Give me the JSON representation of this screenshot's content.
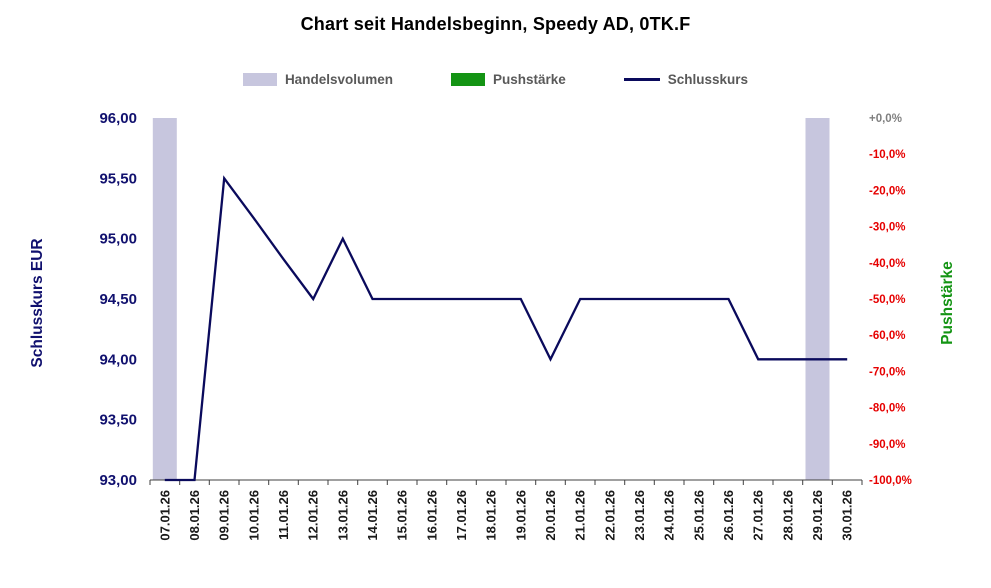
{
  "header": {
    "title": "Chart seit Handelsbeginn, Speedy AD, 0TK.F"
  },
  "legend": {
    "text_color": "#595959",
    "items": [
      {
        "label": "Handelsvolumen",
        "swatch": "bar",
        "color": "#c7c6de"
      },
      {
        "label": "Pushstärke",
        "swatch": "bar",
        "color": "#149414"
      },
      {
        "label": "Schlusskurs",
        "swatch": "line",
        "color": "#0a0a5c"
      }
    ]
  },
  "chart_data": {
    "type": "combo",
    "title": "Chart seit Handelsbeginn, Speedy AD, 0TK.F",
    "grid": false,
    "legend_position": "top",
    "categories": [
      "07.01.26",
      "08.01.26",
      "09.01.26",
      "10.01.26",
      "11.01.26",
      "12.01.26",
      "13.01.26",
      "14.01.26",
      "15.01.26",
      "16.01.26",
      "17.01.26",
      "18.01.26",
      "19.01.26",
      "20.01.26",
      "21.01.26",
      "22.01.26",
      "23.01.26",
      "24.01.26",
      "25.01.26",
      "26.01.26",
      "27.01.26",
      "28.01.26",
      "29.01.26",
      "30.01.26"
    ],
    "series": [
      {
        "name": "Handelsvolumen",
        "type": "bar",
        "color": "#c7c6de",
        "axis": "volume-unlabeled",
        "values_fraction": [
          1,
          0,
          0,
          0,
          0,
          0,
          0,
          0,
          0,
          0,
          0,
          0,
          0,
          0,
          0,
          0,
          0,
          0,
          0,
          0,
          0,
          0,
          1,
          0
        ]
      },
      {
        "name": "Pushstärke",
        "type": "bar",
        "color": "#149414",
        "axis": "right",
        "values": []
      },
      {
        "name": "Schlusskurs",
        "type": "line",
        "color": "#0a0a5c",
        "axis": "left",
        "values": [
          93.0,
          93.0,
          95.5,
          95.17,
          94.83,
          94.5,
          95.0,
          94.5,
          94.5,
          94.5,
          94.5,
          94.5,
          94.5,
          94.0,
          94.5,
          94.5,
          94.5,
          94.5,
          94.5,
          94.5,
          94.0,
          94.0,
          94.0,
          94.0
        ]
      }
    ],
    "left_axis": {
      "title": "Schlusskurs EUR",
      "min": 93,
      "max": 96,
      "color": "#10106e",
      "tick_labels_top_to_bottom": [
        "96,00",
        "95,50",
        "95,00",
        "94,50",
        "94,00",
        "93,50",
        "93,00"
      ]
    },
    "right_axis": {
      "title": "Pushstärke",
      "title_color": "#149414",
      "tick_color": "#e60000",
      "zero_tick_color": "#7f7f7f",
      "tick_labels_top_to_bottom": [
        "+0,0%",
        "-10,0%",
        "-20,0%",
        "-30,0%",
        "-40,0%",
        "-50,0%",
        "-60,0%",
        "-70,0%",
        "-80,0%",
        "-90,0%",
        "-100,0%"
      ]
    },
    "x_axis": {
      "label_rotation_deg": 90,
      "label_color": "#1a1a1a"
    }
  }
}
